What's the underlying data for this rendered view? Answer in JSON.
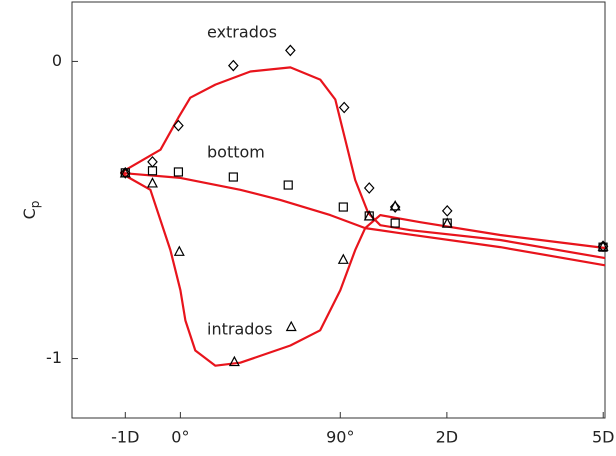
{
  "chart_data": {
    "type": "scatter",
    "ylabel": {
      "text": "C",
      "subscript": "p"
    },
    "xlim": [
      -61,
      239
    ],
    "ylim": [
      -1.2,
      0.2
    ],
    "xticks": [
      {
        "value": -31,
        "label": "-1D"
      },
      {
        "value": 0,
        "label": "0°"
      },
      {
        "value": 90,
        "label": "90°"
      },
      {
        "value": 150,
        "label": "2D"
      },
      {
        "value": 238,
        "label": "5D"
      }
    ],
    "yticks": [
      0,
      -1
    ],
    "annotations": [
      "extrados",
      "bottom",
      "intrados"
    ],
    "series": [
      {
        "style": "line",
        "color": "#e8141c",
        "x": [
          -33.7,
          -11.2,
          -1.1,
          5.6,
          19.7,
          39.4,
          61.9,
          78.7,
          87.2,
          92.8,
          98.4,
          105.7,
          112.5,
          129.4,
          180.0,
          239
        ],
        "values": [
          -0.375,
          -0.297,
          -0.189,
          -0.122,
          -0.078,
          -0.034,
          -0.02,
          -0.061,
          -0.128,
          -0.264,
          -0.399,
          -0.51,
          -0.551,
          -0.568,
          -0.601,
          -0.662
        ]
      },
      {
        "style": "line",
        "color": "#e8141c",
        "x": [
          -33.7,
          0,
          33.7,
          56.2,
          84.4,
          104.0,
          123.7,
          180.0,
          239
        ],
        "values": [
          -0.375,
          -0.392,
          -0.432,
          -0.466,
          -0.517,
          -0.561,
          -0.578,
          -0.625,
          -0.686
        ]
      },
      {
        "style": "line",
        "color": "#e8141c",
        "x": [
          -33.7,
          -16.9,
          -5.6,
          0,
          2.8,
          8.4,
          19.7,
          33.7,
          61.9,
          78.7,
          90.0,
          98.4,
          104.0,
          112.5,
          135.0,
          180.0,
          239
        ],
        "values": [
          -0.375,
          -0.432,
          -0.635,
          -0.77,
          -0.872,
          -0.973,
          -1.024,
          -1.014,
          -0.956,
          -0.905,
          -0.77,
          -0.635,
          -0.561,
          -0.517,
          -0.541,
          -0.584,
          -0.628
        ]
      },
      {
        "style": "marker",
        "marker": "diamond",
        "color": "#000000",
        "x": [
          -31,
          -15.7,
          -1.1,
          29.8,
          61.9,
          92.2,
          106.3,
          120.9,
          150.2,
          237.9
        ],
        "values": [
          -0.375,
          -0.338,
          -0.216,
          -0.014,
          0.037,
          -0.155,
          -0.426,
          -0.49,
          -0.503,
          -0.622
        ]
      },
      {
        "style": "marker",
        "marker": "square",
        "color": "#000000",
        "x": [
          -31,
          -15.7,
          -1.1,
          29.8,
          60.7,
          91.7,
          106.3,
          120.9,
          150.2,
          237.9
        ],
        "values": [
          -0.375,
          -0.368,
          -0.372,
          -0.389,
          -0.416,
          -0.49,
          -0.52,
          -0.544,
          -0.544,
          -0.625
        ]
      },
      {
        "style": "marker",
        "marker": "triangle",
        "color": "#000000",
        "x": [
          -31,
          -15.7,
          -0.6,
          30.4,
          62.4,
          91.7,
          106.3,
          120.9,
          150.2,
          237.9
        ],
        "values": [
          -0.375,
          -0.409,
          -0.639,
          -1.01,
          -0.892,
          -0.666,
          -0.52,
          -0.486,
          -0.544,
          -0.622
        ]
      }
    ]
  }
}
